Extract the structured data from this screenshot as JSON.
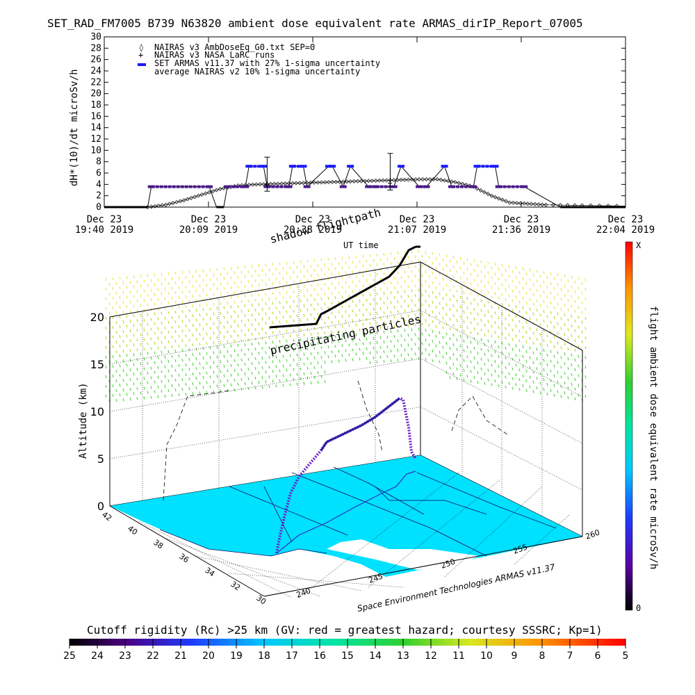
{
  "title": "SET_RAD_FM7005  B739 N63820 ambient dose equivalent rate ARMAS_dirIP_Report_07005",
  "top_chart": {
    "ylabel": "dH*(10)/dt microSv/h",
    "xlabel": "UT time",
    "legend": [
      "NAIRAS v3 AmbDoseEq_G0.txt SEP=0",
      "NAIRAS v3 NASA LaRC runs",
      "SET ARMAS v11.37 with 27% 1-sigma uncertainty",
      "average NAIRAS v2 10% 1-sigma uncertainty"
    ],
    "x_ticks": [
      {
        "date": "Dec 23",
        "time": "19:40 2019"
      },
      {
        "date": "Dec 23",
        "time": "20:09 2019"
      },
      {
        "date": "Dec 23",
        "time": "20:38 2019"
      },
      {
        "date": "Dec 23",
        "time": "21:07 2019"
      },
      {
        "date": "Dec 23",
        "time": "21:36 2019"
      },
      {
        "date": "Dec 23",
        "time": "22:04 2019"
      }
    ],
    "y_ticks": [
      "0",
      "2",
      "4",
      "6",
      "8",
      "10",
      "12",
      "14",
      "16",
      "18",
      "20",
      "22",
      "24",
      "26",
      "28",
      "30"
    ]
  },
  "chart_data": [
    {
      "type": "scatter",
      "title": "SET_RAD_FM7005  B739 N63820 ambient dose equivalent rate ARMAS_dirIP_Report_07005",
      "xlabel": "UT time",
      "ylabel": "dH*(10)/dt microSv/h",
      "ylim": [
        0,
        30
      ],
      "xlim": [
        "19:40",
        "22:04"
      ],
      "series": [
        {
          "name": "SET ARMAS v11.37 with 27% 1-sigma uncertainty",
          "x": [
            "19:40",
            "19:52",
            "19:53",
            "20:09",
            "20:11",
            "20:13",
            "20:14",
            "20:19",
            "20:20",
            "20:24",
            "20:25",
            "20:31",
            "20:32",
            "20:35",
            "20:36",
            "20:42",
            "20:43",
            "20:46",
            "20:48",
            "20:53",
            "20:55",
            "21:00",
            "21:02",
            "21:07",
            "21:09",
            "21:14",
            "21:16",
            "21:22",
            "21:23",
            "21:28",
            "21:29",
            "21:36",
            "21:46",
            "22:04"
          ],
          "values": [
            0,
            0,
            3.6,
            3.6,
            0,
            0,
            3.6,
            3.6,
            7.2,
            7.2,
            3.6,
            3.6,
            7.2,
            7.2,
            3.6,
            7.2,
            7.2,
            3.6,
            7.2,
            3.6,
            3.6,
            3.6,
            7.2,
            3.6,
            3.6,
            7.2,
            3.6,
            3.6,
            7.2,
            7.2,
            3.6,
            3.6,
            0,
            0
          ]
        },
        {
          "name": "NAIRAS v3 AmbDoseEq_G0.txt SEP=0",
          "x": [
            "19:52",
            "19:57",
            "20:02",
            "20:07",
            "20:12",
            "20:17",
            "20:22",
            "20:27",
            "20:32",
            "20:37",
            "20:42",
            "20:47",
            "20:52",
            "20:57",
            "21:02",
            "21:07",
            "21:12",
            "21:17",
            "21:22",
            "21:27",
            "21:32",
            "21:37",
            "21:42",
            "21:52",
            "22:04"
          ],
          "values": [
            0,
            0.4,
            1.2,
            2.2,
            3.2,
            3.8,
            4.0,
            4.1,
            4.2,
            4.3,
            4.4,
            4.5,
            4.6,
            4.7,
            4.8,
            4.9,
            4.9,
            4.4,
            3.6,
            2.0,
            0.8,
            0.6,
            0.4,
            0.3,
            0.2
          ]
        },
        {
          "name": "NAIRAS v3 NASA LaRC runs",
          "x": [
            "20:25",
            "20:59"
          ],
          "values": [
            4.0,
            4.3
          ]
        }
      ]
    },
    {
      "type": "3d-trajectory",
      "zlabel": "Altitude (km)",
      "z_ticks": [
        "0",
        "5",
        "10",
        "15",
        "20"
      ],
      "lat_ticks": [
        "42",
        "40",
        "38",
        "36",
        "34",
        "32",
        "30"
      ],
      "lon_ticks": [
        "240",
        "245",
        "250",
        "255",
        "260"
      ],
      "annotations": [
        "shadow flightpath",
        "precipitating particles"
      ],
      "credit": "Space Environment Technologies ARMAS v11.37",
      "right_colorbar_label": "flight ambient dose equivalent rate microSv/h",
      "right_colorbar_ticks": [
        "X",
        "0"
      ]
    }
  ],
  "colorbar": {
    "label": "Cutoff rigidity (Rc) >25 km (GV: red = greatest hazard; courtesy SSSRC; Kp=1)",
    "ticks": [
      "25",
      "24",
      "23",
      "22",
      "21",
      "20",
      "19",
      "18",
      "17",
      "16",
      "15",
      "14",
      "13",
      "12",
      "11",
      "10",
      "9",
      "8",
      "7",
      "6",
      "5"
    ]
  }
}
